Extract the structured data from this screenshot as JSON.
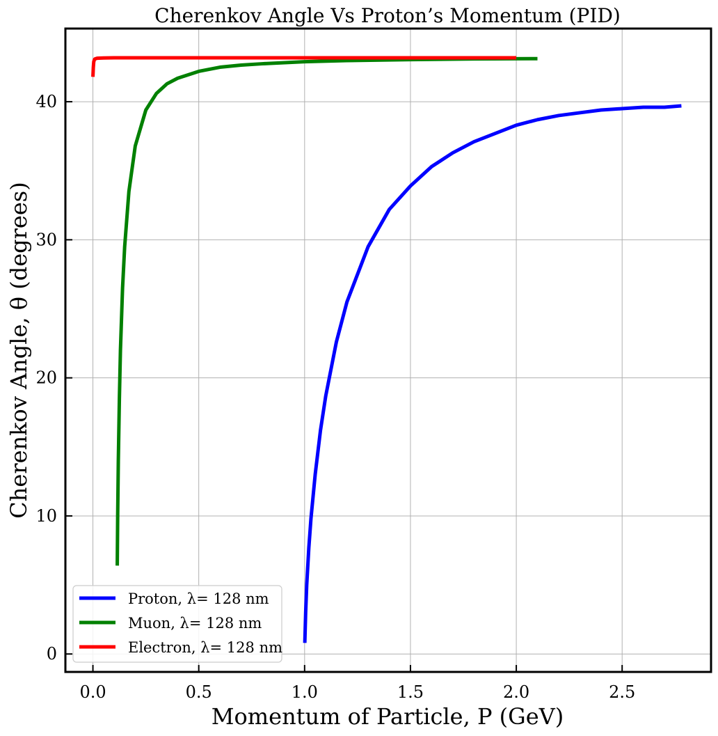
{
  "chart_data": {
    "type": "line",
    "title": "Cherenkov Angle Vs Proton’s Momentum (PID)",
    "xlabel": "Momentum of Particle, P (GeV)",
    "ylabel": "Cherenkov Angle, θ (degrees)",
    "xlim": [
      -0.13,
      2.92
    ],
    "ylim": [
      -1.3,
      45.3
    ],
    "xticks": [
      0.0,
      0.5,
      1.0,
      1.5,
      2.0,
      2.5
    ],
    "xtick_labels": [
      "0.0",
      "0.5",
      "1.0",
      "1.5",
      "2.0",
      "2.5"
    ],
    "yticks": [
      0,
      10,
      20,
      30,
      40
    ],
    "ytick_labels": [
      "0",
      "10",
      "20",
      "30",
      "40"
    ],
    "grid": true,
    "legend_position": "lower-left",
    "series": [
      {
        "name": "Proton, λ= 128 nm",
        "color": "#0000ff",
        "x": [
          1.001,
          1.005,
          1.01,
          1.02,
          1.03,
          1.05,
          1.075,
          1.1,
          1.15,
          1.2,
          1.3,
          1.4,
          1.5,
          1.6,
          1.7,
          1.8,
          1.9,
          2.0,
          2.1,
          2.2,
          2.3,
          2.4,
          2.5,
          2.6,
          2.7,
          2.78
        ],
        "y": [
          0.8,
          3.0,
          5.0,
          7.7,
          9.8,
          13.0,
          16.2,
          18.7,
          22.6,
          25.5,
          29.5,
          32.2,
          33.9,
          35.3,
          36.3,
          37.1,
          37.7,
          38.3,
          38.7,
          39.0,
          39.2,
          39.4,
          39.5,
          39.6,
          39.6,
          39.7
        ]
      },
      {
        "name": "Muon, λ= 128 nm",
        "color": "#008000",
        "x": [
          0.115,
          0.117,
          0.12,
          0.125,
          0.13,
          0.14,
          0.15,
          0.17,
          0.2,
          0.25,
          0.3,
          0.35,
          0.4,
          0.5,
          0.6,
          0.7,
          0.8,
          1.0,
          1.2,
          1.5,
          1.8,
          2.1
        ],
        "y": [
          6.4,
          10.0,
          14.0,
          18.5,
          22.0,
          26.5,
          29.5,
          33.5,
          36.8,
          39.4,
          40.6,
          41.3,
          41.7,
          42.2,
          42.5,
          42.65,
          42.75,
          42.9,
          42.98,
          43.05,
          43.1,
          43.12
        ]
      },
      {
        "name": "Electron, λ= 128 nm",
        "color": "#ff0000",
        "x": [
          0.0,
          0.002,
          0.004,
          0.007,
          0.01,
          0.02,
          0.05,
          0.1,
          0.5,
          1.0,
          1.5,
          2.0
        ],
        "y": [
          41.8,
          42.5,
          42.9,
          43.05,
          43.1,
          43.15,
          43.17,
          43.18,
          43.18,
          43.18,
          43.18,
          43.18
        ]
      }
    ]
  }
}
